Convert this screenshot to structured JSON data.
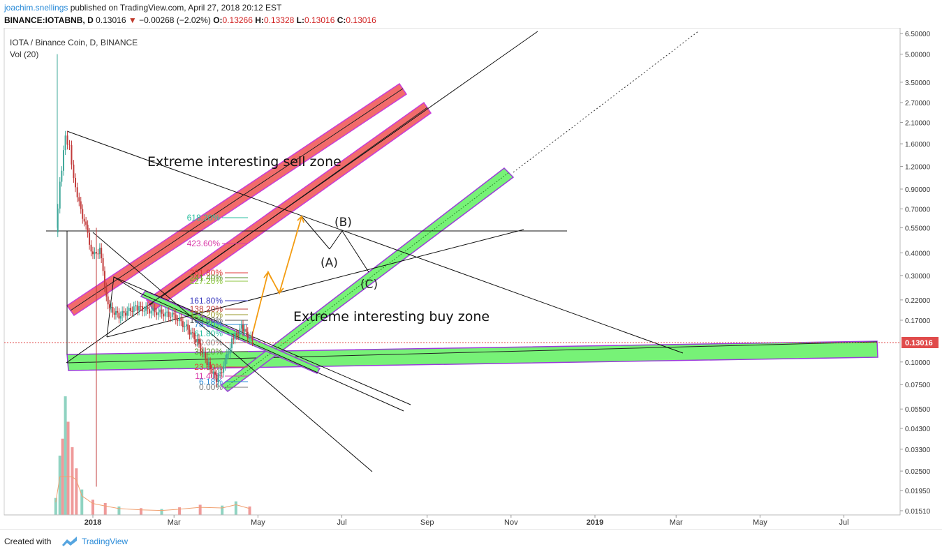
{
  "header": {
    "author": "joachim.snellings",
    "published": "published on TradingView.com, April 27, 2018 20:12 EST",
    "symbol": "BINANCE:IOTABNB, D",
    "last": "0.13016",
    "change": "−0.00268 (−2.02%)",
    "o_label": "O:",
    "o_val": "0.13266",
    "h_label": "H:",
    "h_val": "0.13328",
    "l_label": "L:",
    "l_val": "0.13016",
    "c_label": "C:",
    "c_val": "0.13016"
  },
  "legend": {
    "title": "IOTA / Binance Coin, D, BINANCE",
    "volume": "Vol (20)"
  },
  "footer": {
    "created": "Created with",
    "brand": "TradingView"
  },
  "colors": {
    "sell_zone": "#f26b6b",
    "sell_zone_border": "#c83cd9",
    "buy_zone": "#77f277",
    "buy_zone_border": "#9a3cd9",
    "path_arrow": "#f39c12",
    "up": "#3fa89a",
    "down": "#c23b3b",
    "vol_up": "#8fd3c1",
    "vol_down": "#ef9a9a",
    "last_price": "#e04b4b"
  },
  "chart_data": {
    "type": "candlestick",
    "title": "IOTA / Binance Coin, D, BINANCE",
    "y_scale": "log",
    "y_ticks": [
      "6.50000",
      "5.00000",
      "3.50000",
      "2.70000",
      "2.10000",
      "1.60000",
      "1.20000",
      "0.90000",
      "0.70000",
      "0.55000",
      "0.40000",
      "0.30000",
      "0.22000",
      "0.17000",
      "0.13016",
      "0.10000",
      "0.07500",
      "0.05500",
      "0.04300",
      "0.03300",
      "0.02500",
      "0.01950",
      "0.01510"
    ],
    "x_ticks": [
      "2018",
      "Mar",
      "May",
      "Jul",
      "Sep",
      "Nov",
      "2019",
      "Mar",
      "May",
      "Jul"
    ],
    "last_price": 0.13016,
    "price_path": [
      {
        "date": "2017-12-05",
        "close": 0.52
      },
      {
        "date": "2017-12-08",
        "close": 0.95
      },
      {
        "date": "2017-12-12",
        "close": 1.75
      },
      {
        "date": "2017-12-15",
        "close": 1.55
      },
      {
        "date": "2017-12-18",
        "close": 1.05
      },
      {
        "date": "2017-12-22",
        "close": 0.75
      },
      {
        "date": "2017-12-27",
        "close": 0.55
      },
      {
        "date": "2018-01-01",
        "close": 0.38
      },
      {
        "date": "2018-01-06",
        "close": 0.42
      },
      {
        "date": "2018-01-12",
        "close": 0.2
      },
      {
        "date": "2018-01-20",
        "close": 0.18
      },
      {
        "date": "2018-02-01",
        "close": 0.2
      },
      {
        "date": "2018-02-15",
        "close": 0.19
      },
      {
        "date": "2018-03-01",
        "close": 0.18
      },
      {
        "date": "2018-03-10",
        "close": 0.155
      },
      {
        "date": "2018-03-18",
        "close": 0.13
      },
      {
        "date": "2018-03-25",
        "close": 0.1
      },
      {
        "date": "2018-04-01",
        "close": 0.08
      },
      {
        "date": "2018-04-06",
        "close": 0.095
      },
      {
        "date": "2018-04-12",
        "close": 0.13
      },
      {
        "date": "2018-04-19",
        "close": 0.155
      },
      {
        "date": "2018-04-27",
        "close": 0.13016
      }
    ],
    "fib_levels": [
      {
        "label": "618.20%",
        "color": "#2bbfa0"
      },
      {
        "label": "423.60%",
        "color": "#d93aa8"
      },
      {
        "label": "261.80%",
        "color": "#e03a3a"
      },
      {
        "label": "241.40%",
        "color": "#5a8f2a"
      },
      {
        "label": "227.20%",
        "color": "#8cc63e"
      },
      {
        "label": "161.80%",
        "color": "#3b3bbf"
      },
      {
        "label": "138.20%",
        "color": "#c23b3b"
      },
      {
        "label": "127.20%",
        "color": "#9a9a2a"
      },
      {
        "label": "100.00%",
        "color": "#555555"
      },
      {
        "label": "78.60%",
        "color": "#2a8bd8"
      },
      {
        "label": "61.80%",
        "color": "#2bbfa0"
      },
      {
        "label": "50.00%",
        "color": "#888888"
      },
      {
        "label": "38.20%",
        "color": "#5a8f2a"
      },
      {
        "label": "23.60%",
        "color": "#e03a3a"
      },
      {
        "label": "11.40%",
        "color": "#d93aa8"
      },
      {
        "label": "6.18%",
        "color": "#2a8bd8"
      },
      {
        "label": "0.00%",
        "color": "#777777"
      }
    ],
    "annotations": {
      "sell_zone": "Extreme interesting sell zone",
      "buy_zone": "Extreme interesting buy zone",
      "wave_a": "(A)",
      "wave_b": "(B)",
      "wave_c": "(C)"
    },
    "volume": {
      "indicator": "Vol (20)",
      "bars": [
        {
          "date": "2017-12-05",
          "v": 20,
          "dir": "up"
        },
        {
          "date": "2017-12-08",
          "v": 70,
          "dir": "up"
        },
        {
          "date": "2017-12-10",
          "v": 90,
          "dir": "down"
        },
        {
          "date": "2017-12-12",
          "v": 140,
          "dir": "up"
        },
        {
          "date": "2017-12-14",
          "v": 110,
          "dir": "down"
        },
        {
          "date": "2017-12-17",
          "v": 80,
          "dir": "down"
        },
        {
          "date": "2017-12-20",
          "v": 55,
          "dir": "down"
        },
        {
          "date": "2017-12-24",
          "v": 30,
          "dir": "up"
        },
        {
          "date": "2018-01-01",
          "v": 18,
          "dir": "down"
        },
        {
          "date": "2018-01-10",
          "v": 14,
          "dir": "down"
        },
        {
          "date": "2018-01-20",
          "v": 10,
          "dir": "up"
        },
        {
          "date": "2018-02-05",
          "v": 8,
          "dir": "down"
        },
        {
          "date": "2018-02-20",
          "v": 7,
          "dir": "up"
        },
        {
          "date": "2018-03-05",
          "v": 9,
          "dir": "down"
        },
        {
          "date": "2018-03-20",
          "v": 12,
          "dir": "down"
        },
        {
          "date": "2018-04-05",
          "v": 11,
          "dir": "up"
        },
        {
          "date": "2018-04-15",
          "v": 16,
          "dir": "up"
        },
        {
          "date": "2018-04-25",
          "v": 10,
          "dir": "down"
        }
      ]
    }
  }
}
